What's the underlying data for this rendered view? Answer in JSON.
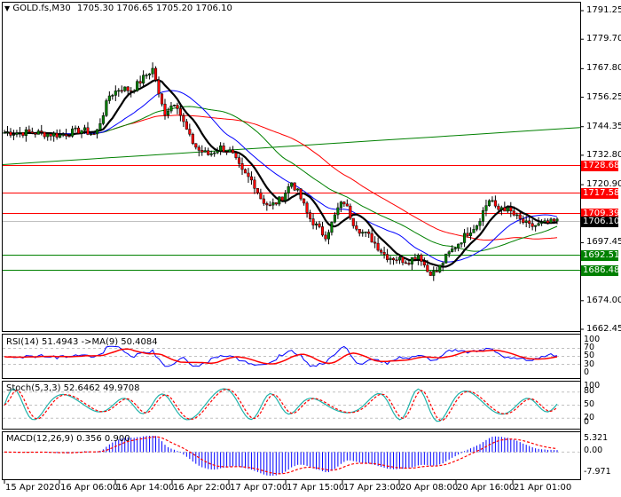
{
  "header": {
    "symbol_label": "GOLD.fs,M30",
    "ohlc": "1705.30 1706.65 1705.20 1706.10"
  },
  "price_axis": {
    "ticks": [
      "1791.25",
      "1779.70",
      "1767.80",
      "1756.25",
      "1744.35",
      "1732.80",
      "1720.90",
      "1697.45",
      "1674.00",
      "1662.45"
    ],
    "tick_values": [
      1791.25,
      1779.7,
      1767.8,
      1756.25,
      1744.35,
      1732.8,
      1720.9,
      1697.45,
      1674.0,
      1662.45
    ],
    "max": 1791.25,
    "min": 1662.45
  },
  "levels": [
    {
      "value": 1728.68,
      "label": "1728.68",
      "color": "#ff0000"
    },
    {
      "value": 1717.58,
      "label": "1717.58",
      "color": "#ff0000"
    },
    {
      "value": 1709.39,
      "label": "1709.39",
      "color": "#ff0000"
    },
    {
      "value": 1706.1,
      "label": "1706.10",
      "color": "#000000",
      "line_color": "#c0c0c0"
    },
    {
      "value": 1692.51,
      "label": "1692.51",
      "color": "#008000"
    },
    {
      "value": 1686.48,
      "label": "1686.48",
      "color": "#008000"
    }
  ],
  "rsi": {
    "title": "RSI(14) 51.4943  ->MA(9) 50.4084",
    "axis": [
      "100",
      "70",
      "50",
      "30",
      "0"
    ]
  },
  "stoch": {
    "title": "Stoch(5,3,3) 52.6462 49.9708",
    "axis": [
      "100",
      "80",
      "50",
      "20",
      "0"
    ]
  },
  "macd": {
    "title": "MACD(12,26,9) 0.356 0.900",
    "axis": [
      "5.321",
      "0.00",
      "-7.971"
    ]
  },
  "time_axis": [
    "15 Apr 2020",
    "16 Apr 06:00",
    "16 Apr 14:00",
    "16 Apr 22:00",
    "17 Apr 07:00",
    "17 Apr 15:00",
    "17 Apr 23:00",
    "20 Apr 08:00",
    "20 Apr 16:00",
    "21 Apr 01:00"
  ],
  "colors": {
    "bull": "#008000",
    "bear": "#ff0000",
    "ma_fast": "#000000",
    "ma_blue": "#0000ff",
    "ma_green": "#008000",
    "ma_red": "#ff0000",
    "rsi_line": "#0000ff",
    "rsi_ma": "#ff0000",
    "stoch_main": "#20b2aa",
    "stoch_signal": "#ff0000",
    "macd_hist": "#0000ff",
    "macd_signal": "#ff0000"
  },
  "chart_data": {
    "type": "candlestick",
    "title": "GOLD.fs,M30",
    "timeframe": "M30",
    "ohlc_last": {
      "open": 1705.3,
      "high": 1706.65,
      "low": 1705.2,
      "close": 1706.1
    },
    "ylim": [
      1662.45,
      1791.25
    ],
    "price_path": [
      [
        0,
        1742
      ],
      [
        10,
        1742
      ],
      [
        20,
        1741
      ],
      [
        28,
        1743
      ],
      [
        33,
        1741
      ],
      [
        38,
        1757
      ],
      [
        42,
        1760
      ],
      [
        46,
        1759
      ],
      [
        52,
        1766
      ],
      [
        54,
        1768
      ],
      [
        56,
        1756
      ],
      [
        58,
        1750
      ],
      [
        62,
        1755
      ],
      [
        64,
        1748
      ],
      [
        67,
        1740
      ],
      [
        70,
        1735
      ],
      [
        74,
        1733
      ],
      [
        78,
        1736
      ],
      [
        82,
        1734
      ],
      [
        86,
        1726
      ],
      [
        90,
        1722
      ],
      [
        93,
        1715
      ],
      [
        96,
        1712
      ],
      [
        100,
        1715
      ],
      [
        104,
        1722
      ],
      [
        107,
        1716
      ],
      [
        110,
        1708
      ],
      [
        113,
        1704
      ],
      [
        116,
        1700
      ],
      [
        118,
        1704
      ],
      [
        121,
        1712
      ],
      [
        123,
        1714
      ],
      [
        126,
        1706
      ],
      [
        129,
        1702
      ],
      [
        132,
        1700
      ],
      [
        135,
        1696
      ],
      [
        138,
        1692
      ],
      [
        142,
        1691
      ],
      [
        146,
        1690
      ],
      [
        150,
        1693
      ],
      [
        153,
        1686
      ],
      [
        156,
        1685
      ],
      [
        160,
        1692
      ],
      [
        164,
        1697
      ],
      [
        168,
        1702
      ],
      [
        171,
        1705
      ],
      [
        174,
        1712
      ],
      [
        176,
        1716
      ],
      [
        178,
        1710
      ],
      [
        180,
        1712
      ],
      [
        183,
        1710
      ],
      [
        186,
        1707
      ],
      [
        190,
        1704
      ],
      [
        195,
        1705
      ],
      [
        200,
        1706
      ]
    ],
    "moving_averages": [
      {
        "name": "MA fast (black)",
        "color": "#000000",
        "start": 1742,
        "end": 1706
      },
      {
        "name": "MA blue",
        "color": "#0000ff",
        "start": 1747,
        "end": 1705
      },
      {
        "name": "MA green (mid)",
        "color": "#008000",
        "start": 1746,
        "end": 1708
      },
      {
        "name": "MA red (long)",
        "color": "#ff0000",
        "start": 1732,
        "end": 1712
      },
      {
        "name": "MA green (long rising)",
        "color": "#008000",
        "start": 1729,
        "end": 1744
      }
    ],
    "horizontal_levels": [
      1728.68,
      1717.58,
      1709.39,
      1706.1,
      1692.51,
      1686.48
    ],
    "rsi": {
      "period": 14,
      "value": 51.4943,
      "ma_period": 9,
      "ma_value": 50.4084,
      "levels": [
        70,
        50,
        30
      ]
    },
    "stochastic": {
      "params": [
        5,
        3,
        3
      ],
      "main": 52.6462,
      "signal": 49.9708,
      "levels": [
        80,
        50,
        20
      ]
    },
    "macd": {
      "params": [
        12,
        26,
        9
      ],
      "main": 0.356,
      "signal": 0.9,
      "ylim": [
        -7.971,
        5.321
      ]
    },
    "x_tick_labels": [
      "15 Apr 2020",
      "16 Apr 06:00",
      "16 Apr 14:00",
      "16 Apr 22:00",
      "17 Apr 07:00",
      "17 Apr 15:00",
      "17 Apr 23:00",
      "20 Apr 08:00",
      "20 Apr 16:00",
      "21 Apr 01:00"
    ]
  }
}
